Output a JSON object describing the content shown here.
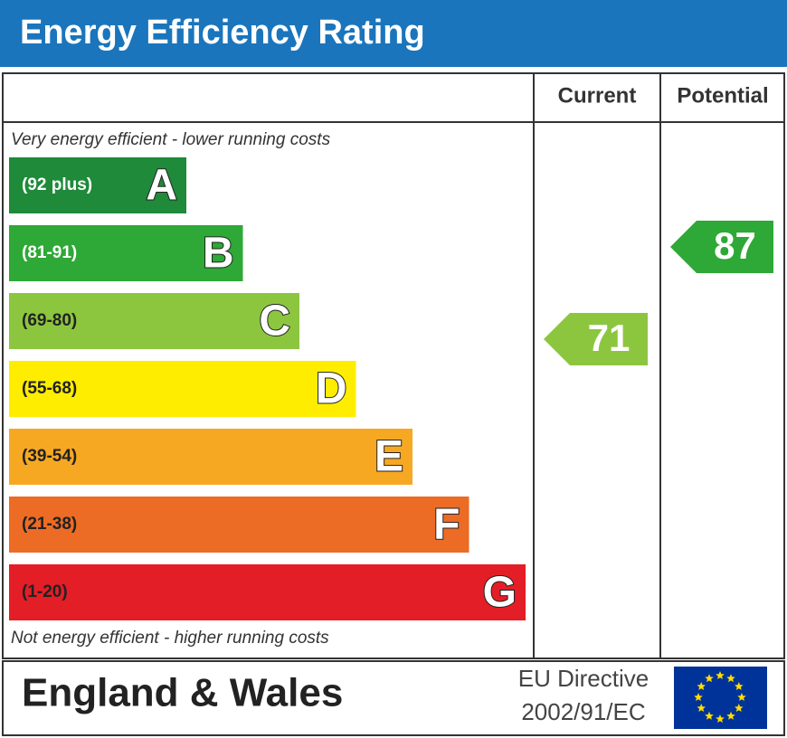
{
  "header": {
    "title": "Energy Efficiency Rating"
  },
  "columns": {
    "current": "Current",
    "potential": "Potential"
  },
  "scale": {
    "top_note": "Very energy efficient - lower running costs",
    "bottom_note": "Not energy efficient - higher running costs",
    "bands": [
      {
        "range": "(92 plus)",
        "letter": "A"
      },
      {
        "range": "(81-91)",
        "letter": "B"
      },
      {
        "range": "(69-80)",
        "letter": "C"
      },
      {
        "range": "(55-68)",
        "letter": "D"
      },
      {
        "range": "(39-54)",
        "letter": "E"
      },
      {
        "range": "(21-38)",
        "letter": "F"
      },
      {
        "range": "(1-20)",
        "letter": "G"
      }
    ]
  },
  "ratings": {
    "current": "71",
    "potential": "87"
  },
  "footer": {
    "region": "England & Wales",
    "directive_line1": "EU Directive",
    "directive_line2": "2002/91/EC"
  }
}
